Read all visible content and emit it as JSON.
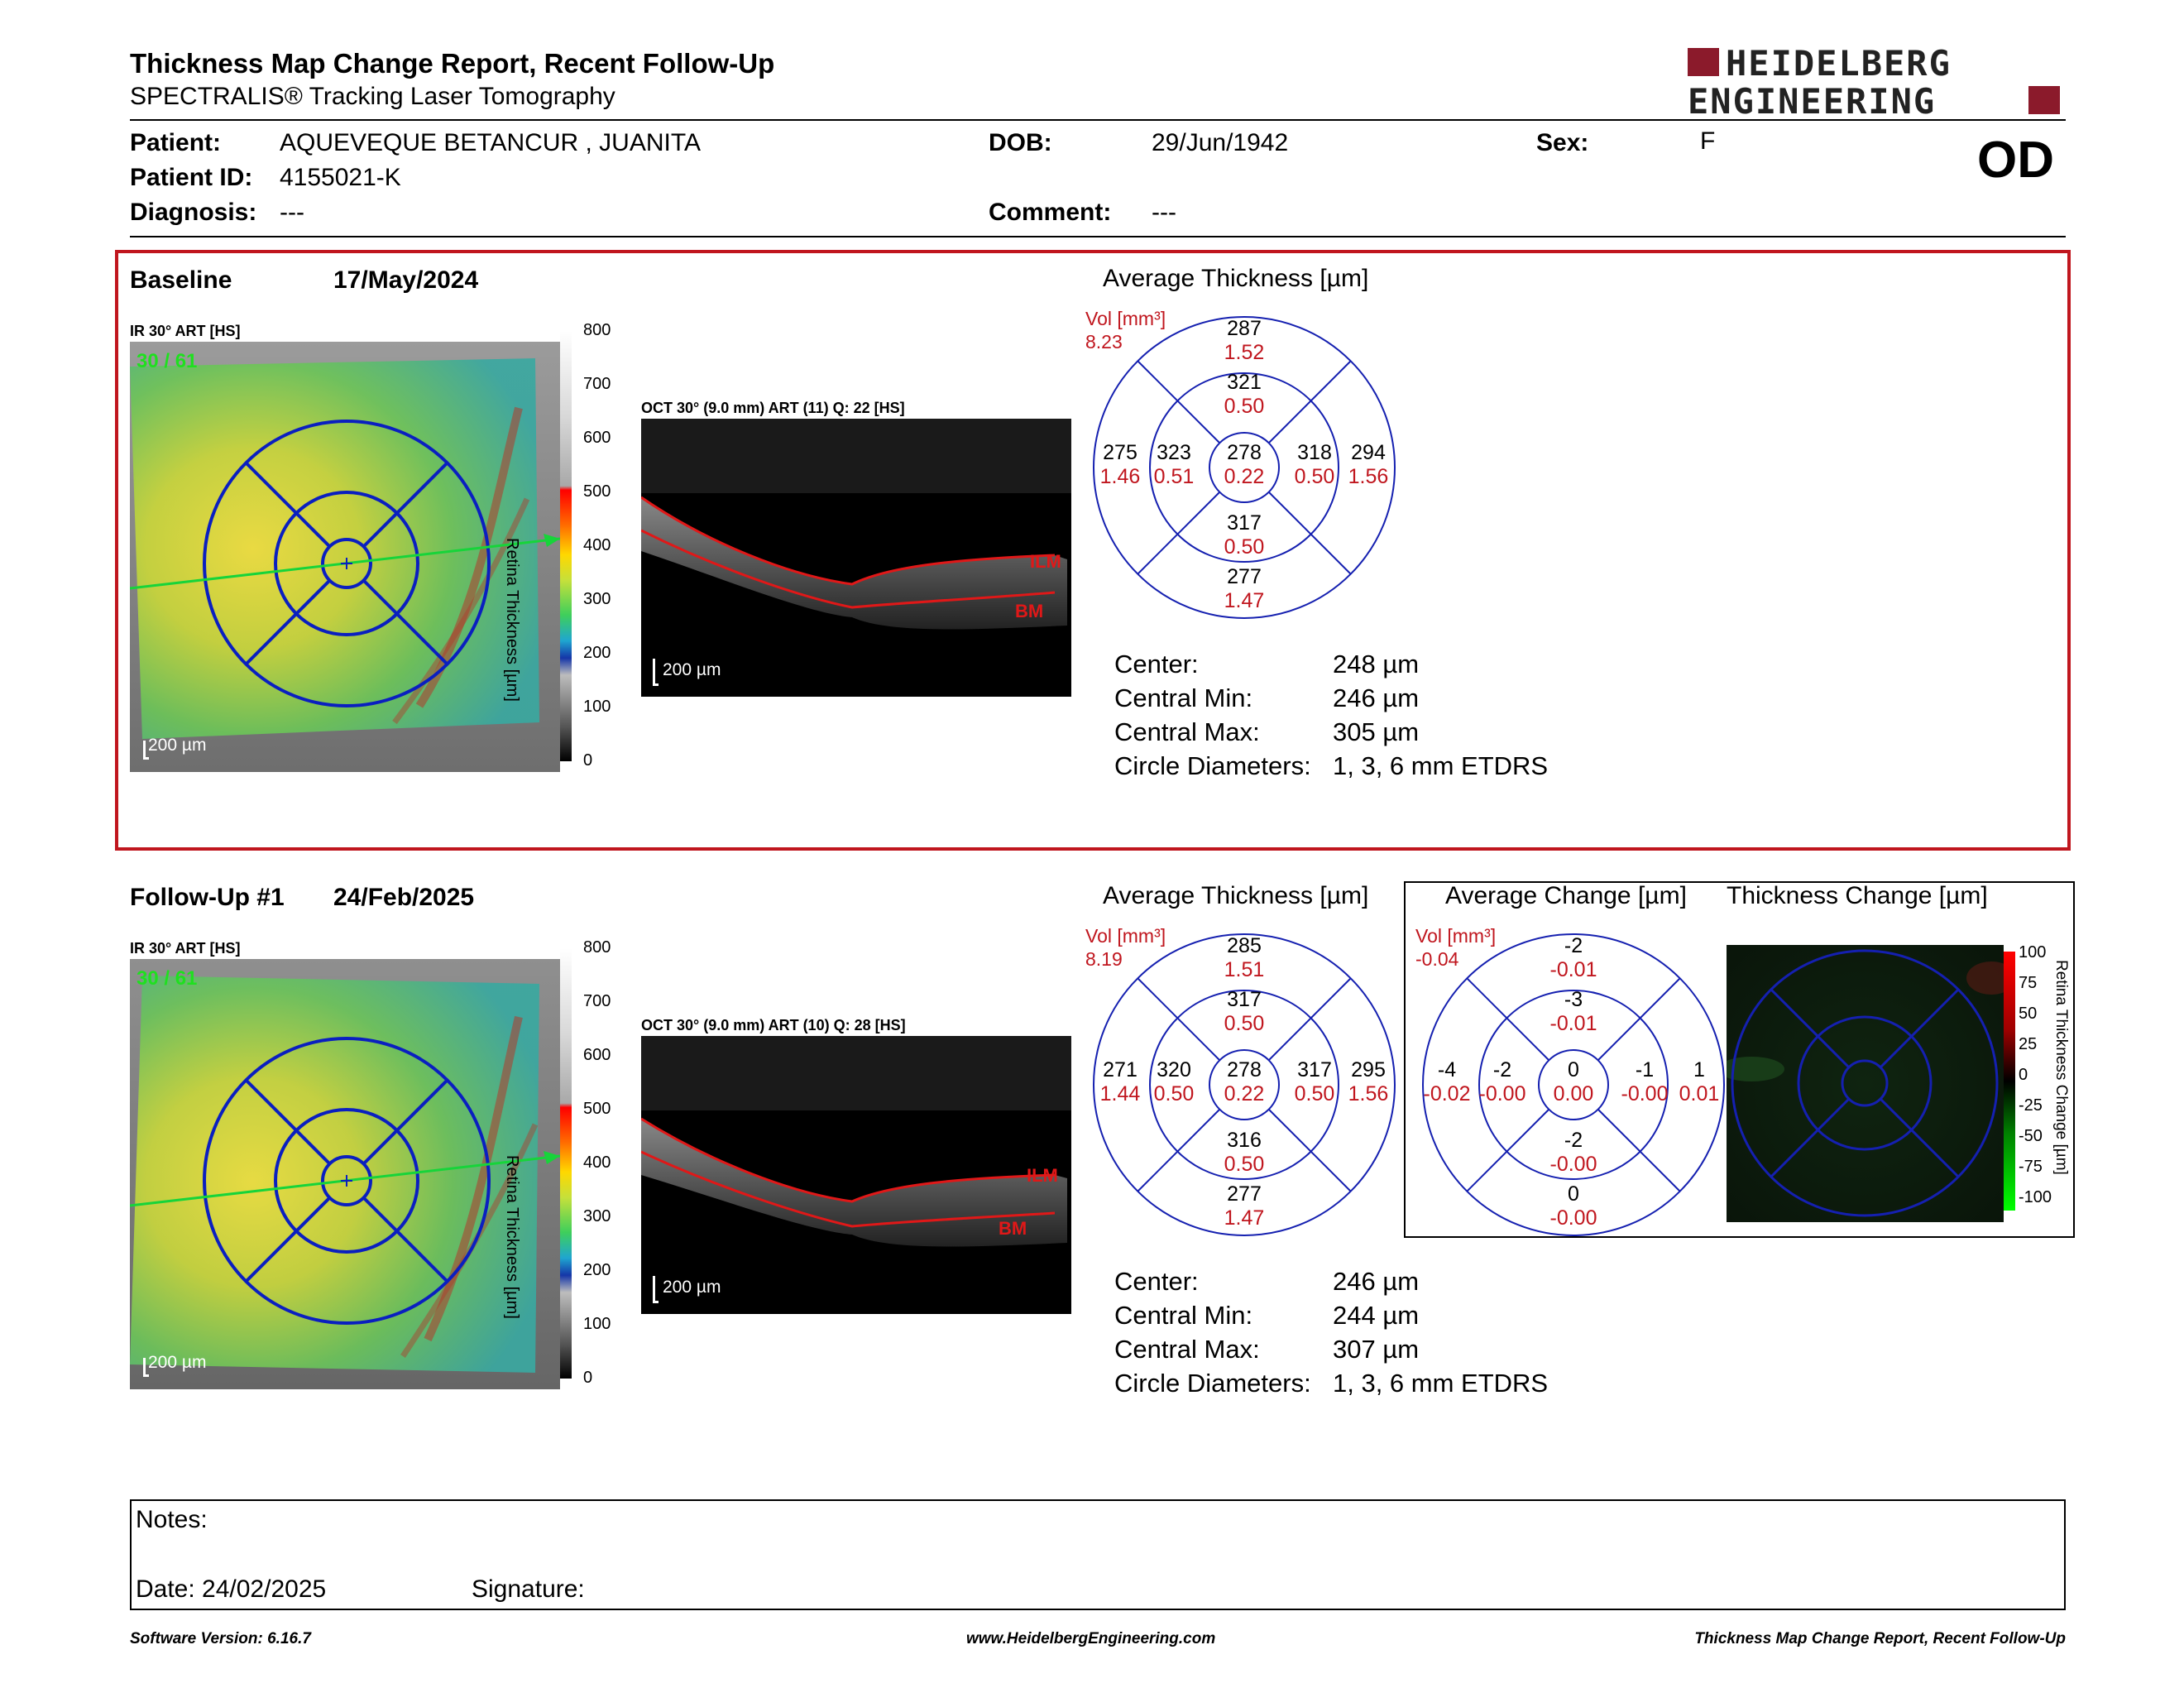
{
  "header": {
    "title": "Thickness Map Change Report, Recent Follow-Up",
    "subtitle": "SPECTRALIS® Tracking Laser Tomography",
    "logo_line1": "HEIDELBERG",
    "logo_line2": "ENGINEERING",
    "eye": "OD"
  },
  "patient": {
    "patient_label": "Patient:",
    "patient_value": "AQUEVEQUE BETANCUR , JUANITA",
    "id_label": "Patient ID:",
    "id_value": "4155021-K",
    "diagnosis_label": "Diagnosis:",
    "diagnosis_value": "---",
    "dob_label": "DOB:",
    "dob_value": "29/Jun/1942",
    "comment_label": "Comment:",
    "comment_value": "---",
    "sex_label": "Sex:",
    "sex_value": "F"
  },
  "baseline": {
    "label": "Baseline",
    "date": "17/May/2024",
    "ir_label": "IR 30° ART [HS]",
    "frame": "30 / 61",
    "scale_bar": "200 µm",
    "oct_label": "OCT 30° (9.0 mm) ART (11) Q: 22 [HS]",
    "oct_scale": "200 µm",
    "ilm": "ILM",
    "bm": "BM",
    "avg_title": "Average Thickness [µm]",
    "vol_label": "Vol [mm³]",
    "vol_value": "8.23",
    "etdrs": {
      "outer_top": "287",
      "outer_top_vol": "1.52",
      "inner_top": "321",
      "inner_top_vol": "0.50",
      "outer_left": "275",
      "outer_left_vol": "1.46",
      "inner_left": "323",
      "inner_left_vol": "0.51",
      "center": "278",
      "center_vol": "0.22",
      "inner_right": "318",
      "inner_right_vol": "0.50",
      "outer_right": "294",
      "outer_right_vol": "1.56",
      "inner_bottom": "317",
      "inner_bottom_vol": "0.50",
      "outer_bottom": "277",
      "outer_bottom_vol": "1.47"
    },
    "stats": {
      "center_label": "Center:",
      "center_value": "248 µm",
      "min_label": "Central Min:",
      "min_value": "246 µm",
      "max_label": "Central Max:",
      "max_value": "305 µm",
      "circ_label": "Circle Diameters:",
      "circ_value": "1, 3, 6 mm ETDRS"
    }
  },
  "followup": {
    "label": "Follow-Up #1",
    "date": "24/Feb/2025",
    "ir_label": "IR 30° ART [HS]",
    "frame": "30 / 61",
    "scale_bar": "200 µm",
    "oct_label": "OCT 30° (9.0 mm) ART (10) Q: 28 [HS]",
    "oct_scale": "200 µm",
    "ilm": "ILM",
    "bm": "BM",
    "avg_title": "Average Thickness [µm]",
    "vol_label": "Vol [mm³]",
    "vol_value": "8.19",
    "etdrs": {
      "outer_top": "285",
      "outer_top_vol": "1.51",
      "inner_top": "317",
      "inner_top_vol": "0.50",
      "outer_left": "271",
      "outer_left_vol": "1.44",
      "inner_left": "320",
      "inner_left_vol": "0.50",
      "center": "278",
      "center_vol": "0.22",
      "inner_right": "317",
      "inner_right_vol": "0.50",
      "outer_right": "295",
      "outer_right_vol": "1.56",
      "inner_bottom": "316",
      "inner_bottom_vol": "0.50",
      "outer_bottom": "277",
      "outer_bottom_vol": "1.47"
    },
    "stats": {
      "center_label": "Center:",
      "center_value": "246 µm",
      "min_label": "Central Min:",
      "min_value": "244 µm",
      "max_label": "Central Max:",
      "max_value": "307 µm",
      "circ_label": "Circle Diameters:",
      "circ_value": "1, 3, 6 mm ETDRS"
    }
  },
  "change": {
    "avg_change_title": "Average Change [µm]",
    "thickness_change_title": "Thickness Change [µm]",
    "vol_label": "Vol [mm³]",
    "vol_value": "-0.04",
    "etdrs": {
      "outer_top": "-2",
      "outer_top_vol": "-0.01",
      "inner_top": "-3",
      "inner_top_vol": "-0.01",
      "outer_left": "-4",
      "outer_left_vol": "-0.02",
      "inner_left": "-2",
      "inner_left_vol": "-0.00",
      "center": "0",
      "center_vol": "0.00",
      "inner_right": "-1",
      "inner_right_vol": "-0.00",
      "outer_right": "1",
      "outer_right_vol": "0.01",
      "inner_bottom": "-2",
      "inner_bottom_vol": "-0.00",
      "outer_bottom": "0",
      "outer_bottom_vol": "-0.00"
    },
    "colorbar_ticks": [
      "100",
      "75",
      "50",
      "25",
      "0",
      "-25",
      "-50",
      "-75",
      "-100"
    ],
    "colorbar_label": "Retina Thickness Change [µm]"
  },
  "thickness_colorbar": {
    "ticks": [
      "800",
      "700",
      "600",
      "500",
      "400",
      "300",
      "200",
      "100",
      "0"
    ],
    "label": "Retina Thickness [µm]"
  },
  "notes": {
    "notes_label": "Notes:",
    "date_label": "Date: 24/02/2025",
    "signature_label": "Signature:"
  },
  "footer": {
    "version": "Software Version: 6.16.7",
    "website": "www.HeidelbergEngineering.com",
    "report": "Thickness Map Change Report, Recent Follow-Up"
  }
}
